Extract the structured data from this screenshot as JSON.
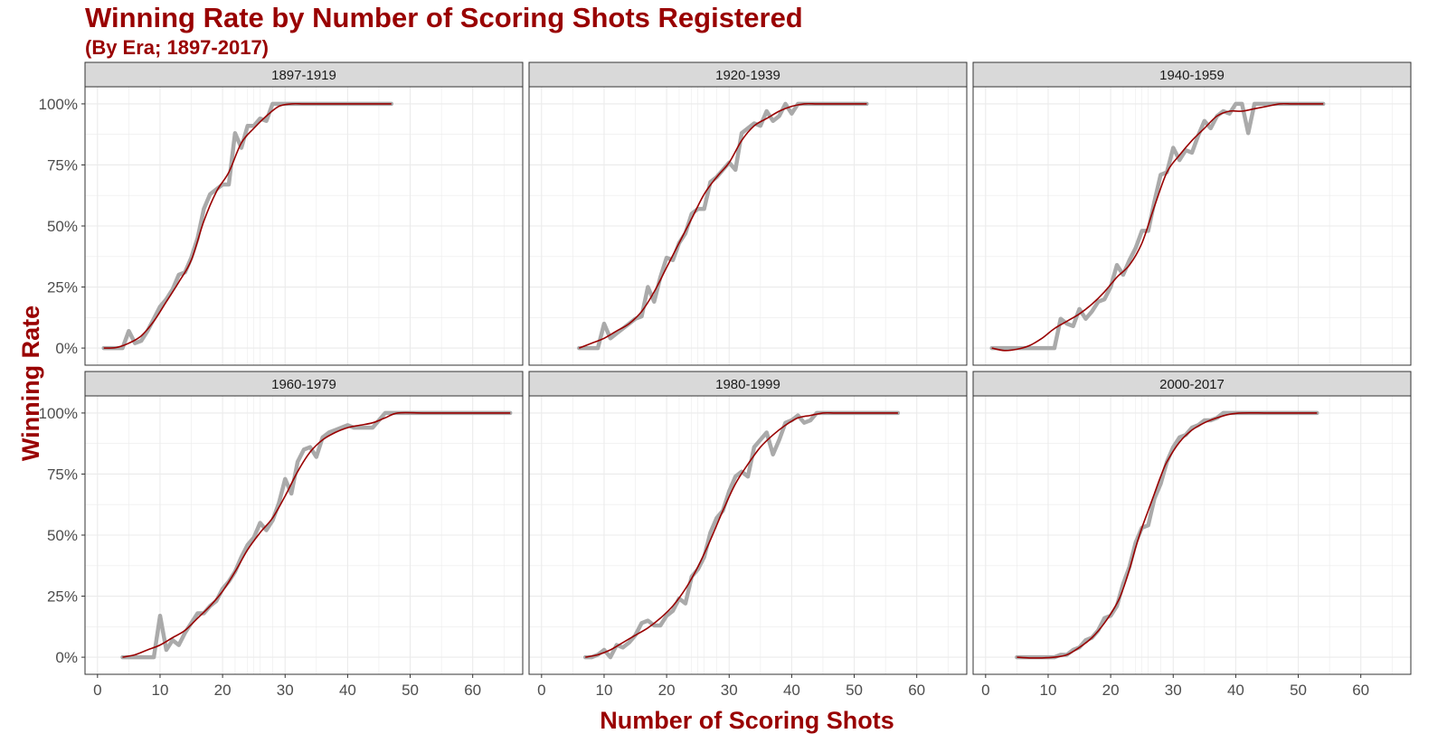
{
  "title": "Winning Rate by Number of Scoring Shots Registered",
  "subtitle": "(By Era; 1897-2017)",
  "colors": {
    "title": "#990000",
    "raw_line": "#aaaaaa",
    "smooth_line": "#990000",
    "strip_fill": "#d9d9d9",
    "grid": "#ebebeb"
  },
  "chart_data": {
    "type": "line",
    "facet_layout": "3 columns x 2 rows",
    "xlabel": "Number of Scoring Shots",
    "ylabel": "Winning Rate",
    "xlim": [
      -2,
      68
    ],
    "ylim": [
      -0.07,
      1.07
    ],
    "x_ticks": [
      0,
      10,
      20,
      30,
      40,
      50,
      60
    ],
    "x_tick_labels": [
      "0",
      "10",
      "20",
      "30",
      "40",
      "50",
      "60"
    ],
    "y_ticks": [
      0,
      0.25,
      0.5,
      0.75,
      1
    ],
    "y_tick_labels": [
      "0%",
      "25%",
      "50%",
      "75%",
      "100%"
    ],
    "grid": true,
    "series_styles": {
      "raw": "thick grey line",
      "smoothed": "thin dark red line"
    },
    "panels": [
      {
        "label": "1897-1919",
        "raw": {
          "x": [
            1,
            2,
            3,
            4,
            5,
            6,
            7,
            8,
            9,
            10,
            11,
            12,
            13,
            14,
            15,
            16,
            17,
            18,
            19,
            20,
            21,
            22,
            23,
            24,
            25,
            26,
            27,
            28,
            29,
            30,
            31,
            32,
            33,
            34,
            35,
            36,
            37,
            38,
            39,
            40,
            41,
            42,
            43,
            44,
            45,
            46,
            47
          ],
          "y": [
            0,
            0,
            0,
            0,
            0.07,
            0.02,
            0.03,
            0.07,
            0.12,
            0.17,
            0.2,
            0.24,
            0.3,
            0.31,
            0.37,
            0.45,
            0.57,
            0.63,
            0.65,
            0.67,
            0.67,
            0.88,
            0.82,
            0.91,
            0.91,
            0.94,
            0.93,
            1,
            1,
            1,
            1,
            1,
            1,
            1,
            1,
            1,
            1,
            1,
            1,
            1,
            1,
            1,
            1,
            1,
            1,
            1,
            1
          ]
        },
        "smooth": {
          "x": [
            1,
            3,
            5,
            7,
            9,
            11,
            13,
            15,
            17,
            19,
            21,
            23,
            25,
            27,
            29,
            31,
            33,
            36,
            40,
            44,
            47
          ],
          "y": [
            0,
            0.002,
            0.02,
            0.05,
            0.11,
            0.19,
            0.27,
            0.36,
            0.52,
            0.64,
            0.72,
            0.84,
            0.9,
            0.95,
            0.99,
            1,
            1,
            1,
            1,
            1,
            1
          ]
        }
      },
      {
        "label": "1920-1939",
        "raw": {
          "x": [
            6,
            7,
            8,
            9,
            10,
            11,
            12,
            13,
            14,
            15,
            16,
            17,
            18,
            19,
            20,
            21,
            22,
            23,
            24,
            25,
            26,
            27,
            28,
            29,
            30,
            31,
            32,
            33,
            34,
            35,
            36,
            37,
            38,
            39,
            40,
            41,
            42,
            43,
            44,
            45,
            46,
            47,
            48,
            49,
            50,
            51,
            52
          ],
          "y": [
            0,
            0,
            0,
            0,
            0.1,
            0.04,
            0.06,
            0.08,
            0.1,
            0.12,
            0.13,
            0.25,
            0.19,
            0.29,
            0.37,
            0.36,
            0.43,
            0.47,
            0.55,
            0.57,
            0.57,
            0.68,
            0.7,
            0.73,
            0.76,
            0.73,
            0.88,
            0.9,
            0.92,
            0.91,
            0.97,
            0.93,
            0.95,
            1,
            0.96,
            1,
            1,
            1,
            1,
            1,
            1,
            1,
            1,
            1,
            1,
            1,
            1
          ]
        },
        "smooth": {
          "x": [
            6,
            8,
            10,
            12,
            14,
            16,
            18,
            20,
            22,
            24,
            26,
            28,
            30,
            32,
            34,
            36,
            38,
            40,
            42,
            44,
            46,
            49,
            52
          ],
          "y": [
            0,
            0.02,
            0.04,
            0.07,
            0.1,
            0.15,
            0.23,
            0.33,
            0.43,
            0.53,
            0.63,
            0.7,
            0.76,
            0.85,
            0.91,
            0.94,
            0.97,
            0.99,
            1,
            1,
            1,
            1,
            1
          ]
        }
      },
      {
        "label": "1940-1959",
        "raw": {
          "x": [
            1,
            2,
            3,
            4,
            5,
            6,
            7,
            8,
            9,
            10,
            11,
            12,
            13,
            14,
            15,
            16,
            17,
            18,
            19,
            20,
            21,
            22,
            23,
            24,
            25,
            26,
            27,
            28,
            29,
            30,
            31,
            32,
            33,
            34,
            35,
            36,
            37,
            38,
            39,
            40,
            41,
            42,
            43,
            44,
            45,
            46,
            47,
            48,
            49,
            50,
            51,
            52,
            53,
            54
          ],
          "y": [
            0,
            0,
            0,
            0,
            0,
            0,
            0,
            0,
            0,
            0,
            0,
            0.12,
            0.1,
            0.09,
            0.16,
            0.12,
            0.15,
            0.19,
            0.2,
            0.25,
            0.34,
            0.3,
            0.36,
            0.41,
            0.48,
            0.48,
            0.6,
            0.71,
            0.72,
            0.82,
            0.77,
            0.81,
            0.8,
            0.87,
            0.93,
            0.9,
            0.95,
            0.97,
            0.96,
            1,
            1,
            0.88,
            1,
            1,
            1,
            1,
            1,
            1,
            1,
            1,
            1,
            1,
            1,
            1
          ]
        },
        "smooth": {
          "x": [
            1,
            3,
            5,
            7,
            9,
            11,
            13,
            15,
            17,
            19,
            21,
            23,
            25,
            27,
            29,
            31,
            33,
            35,
            37,
            39,
            41,
            43,
            45,
            47,
            49,
            51,
            54
          ],
          "y": [
            0,
            -0.01,
            -0.005,
            0.01,
            0.04,
            0.08,
            0.11,
            0.14,
            0.18,
            0.23,
            0.29,
            0.34,
            0.43,
            0.58,
            0.72,
            0.79,
            0.85,
            0.9,
            0.95,
            0.97,
            0.97,
            0.98,
            0.99,
            1,
            1,
            1,
            1
          ]
        }
      },
      {
        "label": "1960-1979",
        "raw": {
          "x": [
            4,
            5,
            6,
            7,
            8,
            9,
            10,
            11,
            12,
            13,
            14,
            15,
            16,
            17,
            18,
            19,
            20,
            21,
            22,
            23,
            24,
            25,
            26,
            27,
            28,
            29,
            30,
            31,
            32,
            33,
            34,
            35,
            36,
            37,
            38,
            39,
            40,
            41,
            42,
            43,
            44,
            45,
            46,
            47,
            48,
            49,
            50,
            51,
            52,
            53,
            54,
            55,
            56,
            57,
            58,
            59,
            60,
            61,
            62,
            63,
            64,
            65,
            66
          ],
          "y": [
            0,
            0,
            0,
            0,
            0,
            0,
            0.17,
            0.03,
            0.07,
            0.05,
            0.1,
            0.14,
            0.18,
            0.18,
            0.21,
            0.23,
            0.28,
            0.31,
            0.35,
            0.41,
            0.46,
            0.49,
            0.55,
            0.52,
            0.56,
            0.63,
            0.73,
            0.67,
            0.8,
            0.85,
            0.86,
            0.82,
            0.9,
            0.92,
            0.93,
            0.94,
            0.95,
            0.94,
            0.94,
            0.94,
            0.94,
            0.97,
            1,
            1,
            1,
            1,
            1,
            1,
            1,
            1,
            1,
            1,
            1,
            1,
            1,
            1,
            1,
            1,
            1,
            1,
            1,
            1,
            1
          ]
        },
        "smooth": {
          "x": [
            4,
            6,
            8,
            10,
            12,
            14,
            16,
            18,
            20,
            22,
            24,
            26,
            28,
            30,
            32,
            34,
            36,
            38,
            40,
            42,
            44,
            46,
            48,
            52,
            56,
            60,
            66
          ],
          "y": [
            0,
            0.01,
            0.03,
            0.05,
            0.08,
            0.11,
            0.16,
            0.21,
            0.27,
            0.35,
            0.44,
            0.51,
            0.57,
            0.66,
            0.76,
            0.84,
            0.89,
            0.92,
            0.94,
            0.95,
            0.96,
            0.98,
            1,
            1,
            1,
            1,
            1
          ]
        }
      },
      {
        "label": "1980-1999",
        "raw": {
          "x": [
            7,
            8,
            9,
            10,
            11,
            12,
            13,
            14,
            15,
            16,
            17,
            18,
            19,
            20,
            21,
            22,
            23,
            24,
            25,
            26,
            27,
            28,
            29,
            30,
            31,
            32,
            33,
            34,
            35,
            36,
            37,
            38,
            39,
            40,
            41,
            42,
            43,
            44,
            45,
            46,
            47,
            48,
            49,
            50,
            51,
            52,
            53,
            54,
            55,
            56,
            57
          ],
          "y": [
            0,
            0,
            0.01,
            0.03,
            0,
            0.05,
            0.04,
            0.06,
            0.09,
            0.14,
            0.15,
            0.13,
            0.13,
            0.17,
            0.19,
            0.24,
            0.22,
            0.33,
            0.36,
            0.41,
            0.51,
            0.57,
            0.6,
            0.68,
            0.74,
            0.76,
            0.74,
            0.86,
            0.89,
            0.92,
            0.83,
            0.89,
            0.96,
            0.97,
            0.99,
            0.96,
            0.97,
            1,
            1,
            1,
            1,
            1,
            1,
            1,
            1,
            1,
            1,
            1,
            1,
            1,
            1
          ]
        },
        "smooth": {
          "x": [
            7,
            9,
            11,
            13,
            15,
            17,
            19,
            21,
            23,
            25,
            27,
            29,
            31,
            33,
            35,
            37,
            39,
            41,
            43,
            45,
            47,
            50,
            53,
            57
          ],
          "y": [
            0,
            0.01,
            0.03,
            0.06,
            0.09,
            0.12,
            0.16,
            0.21,
            0.28,
            0.37,
            0.48,
            0.6,
            0.71,
            0.79,
            0.86,
            0.91,
            0.95,
            0.98,
            0.99,
            1,
            1,
            1,
            1,
            1
          ]
        }
      },
      {
        "label": "2000-2017",
        "raw": {
          "x": [
            5,
            6,
            7,
            8,
            9,
            10,
            11,
            12,
            13,
            14,
            15,
            16,
            17,
            18,
            19,
            20,
            21,
            22,
            23,
            24,
            25,
            26,
            27,
            28,
            29,
            30,
            31,
            32,
            33,
            34,
            35,
            36,
            37,
            38,
            39,
            40,
            41,
            42,
            43,
            44,
            45,
            46,
            47,
            48,
            49,
            50,
            51,
            52,
            53
          ],
          "y": [
            0,
            0,
            0,
            0,
            0,
            0,
            0,
            0.01,
            0.01,
            0.03,
            0.04,
            0.07,
            0.08,
            0.11,
            0.16,
            0.17,
            0.21,
            0.3,
            0.37,
            0.47,
            0.53,
            0.54,
            0.65,
            0.71,
            0.8,
            0.86,
            0.9,
            0.91,
            0.94,
            0.95,
            0.97,
            0.97,
            0.98,
            1,
            1,
            1,
            1,
            1,
            1,
            1,
            1,
            1,
            1,
            1,
            1,
            1,
            1,
            1,
            1
          ]
        },
        "smooth": {
          "x": [
            5,
            7,
            9,
            11,
            13,
            15,
            17,
            19,
            21,
            22,
            23,
            24,
            25,
            26,
            27,
            28,
            29,
            31,
            33,
            35,
            37,
            39,
            41,
            45,
            49,
            53
          ],
          "y": [
            0,
            -0.003,
            -0.003,
            0,
            0.01,
            0.04,
            0.08,
            0.14,
            0.22,
            0.28,
            0.36,
            0.45,
            0.53,
            0.6,
            0.67,
            0.74,
            0.8,
            0.88,
            0.93,
            0.96,
            0.98,
            0.995,
            1,
            1,
            1,
            1
          ]
        }
      }
    ]
  }
}
